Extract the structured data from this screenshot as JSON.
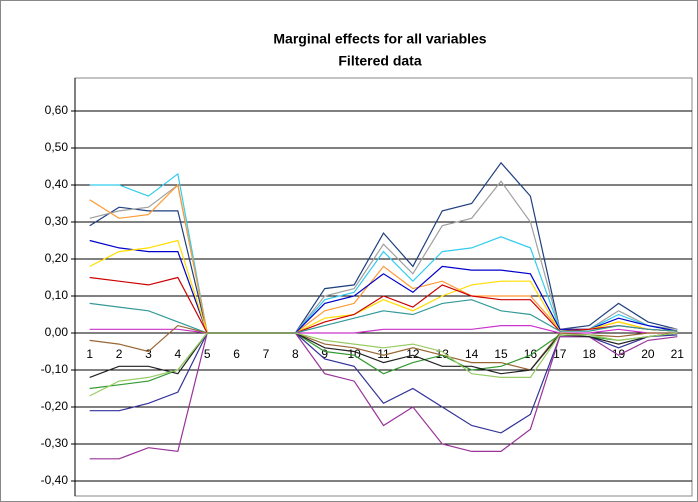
{
  "chart_data": {
    "type": "line",
    "title": "Marginal effects for all variables",
    "subtitle": "Filtered data",
    "categories": [
      "1",
      "2",
      "3",
      "4",
      "5",
      "6",
      "7",
      "8",
      "9",
      "10",
      "11",
      "12",
      "13",
      "14",
      "15",
      "16",
      "17",
      "18",
      "19",
      "20",
      "21"
    ],
    "ylim": [
      -0.4,
      0.6
    ],
    "yticks": [
      {
        "value": 0.6,
        "label": "0,60"
      },
      {
        "value": 0.5,
        "label": "0,50"
      },
      {
        "value": 0.4,
        "label": "0,40"
      },
      {
        "value": 0.3,
        "label": "0,30"
      },
      {
        "value": 0.2,
        "label": "0,20"
      },
      {
        "value": 0.1,
        "label": "0,10"
      },
      {
        "value": 0,
        "label": "0,00"
      },
      {
        "value": -0.1,
        "label": "-0,10"
      },
      {
        "value": -0.2,
        "label": "-0,20"
      },
      {
        "value": -0.3,
        "label": "-0,30"
      },
      {
        "value": -0.4,
        "label": "-0,40"
      }
    ],
    "grid": true,
    "series": [
      {
        "color": "#1f3f7f",
        "values": [
          0.29,
          0.34,
          0.33,
          0.33,
          0,
          0,
          0,
          0,
          0.12,
          0.13,
          0.27,
          0.18,
          0.33,
          0.35,
          0.46,
          0.37,
          0.01,
          0.02,
          0.08,
          0.03,
          0.01
        ]
      },
      {
        "color": "#a0a0a0",
        "values": [
          0.31,
          0.33,
          0.34,
          0.4,
          0,
          0,
          0,
          0,
          0.1,
          0.12,
          0.24,
          0.16,
          0.29,
          0.31,
          0.41,
          0.3,
          0.01,
          0.01,
          0.06,
          0.02,
          0.01
        ]
      },
      {
        "color": "#33ccee",
        "values": [
          0.4,
          0.4,
          0.37,
          0.43,
          0,
          0,
          0,
          0,
          0.09,
          0.11,
          0.22,
          0.14,
          0.22,
          0.23,
          0.26,
          0.23,
          0.01,
          0.01,
          0.05,
          0.02,
          0.005
        ]
      },
      {
        "color": "#ff9933",
        "values": [
          0.36,
          0.31,
          0.32,
          0.4,
          0,
          0,
          0,
          0,
          0.06,
          0.08,
          0.18,
          0.12,
          0.14,
          0.1,
          0.1,
          0.1,
          0.01,
          0.01,
          0.03,
          0.01,
          0.005
        ]
      },
      {
        "color": "#0000cc",
        "values": [
          0.25,
          0.23,
          0.22,
          0.22,
          0,
          0,
          0,
          0,
          0.08,
          0.1,
          0.16,
          0.11,
          0.18,
          0.17,
          0.17,
          0.16,
          0.01,
          0.01,
          0.04,
          0.02,
          0.005
        ]
      },
      {
        "color": "#ffdd00",
        "values": [
          0.18,
          0.22,
          0.23,
          0.25,
          0,
          0,
          0,
          0,
          0.04,
          0.05,
          0.09,
          0.06,
          0.1,
          0.13,
          0.14,
          0.14,
          0.005,
          0.01,
          0.03,
          0.01,
          0.005
        ]
      },
      {
        "color": "#cc0000",
        "values": [
          0.15,
          0.14,
          0.13,
          0.15,
          0,
          0,
          0,
          0,
          0.03,
          0.05,
          0.1,
          0.07,
          0.13,
          0.1,
          0.09,
          0.09,
          0.005,
          0.01,
          0.02,
          0.01,
          0.005
        ]
      },
      {
        "color": "#339999",
        "values": [
          0.08,
          0.07,
          0.06,
          0.03,
          0,
          0,
          0,
          0,
          0.02,
          0.04,
          0.06,
          0.05,
          0.08,
          0.09,
          0.06,
          0.05,
          0.005,
          0.005,
          0.02,
          0.01,
          0.005
        ]
      },
      {
        "color": "#cc33cc",
        "values": [
          0.01,
          0.01,
          0.01,
          0.01,
          0,
          0,
          0,
          0,
          0.0,
          0.0,
          0.01,
          0.01,
          0.01,
          0.01,
          0.02,
          0.02,
          0.0,
          0.0,
          0.01,
          0.0,
          0.0
        ]
      },
      {
        "color": "#996633",
        "values": [
          -0.02,
          -0.03,
          -0.05,
          0.02,
          0,
          0,
          0,
          0,
          -0.03,
          -0.04,
          -0.06,
          -0.04,
          -0.06,
          -0.08,
          -0.08,
          -0.1,
          0.0,
          -0.005,
          -0.01,
          0.0,
          0.0
        ]
      },
      {
        "color": "#339933",
        "values": [
          -0.15,
          -0.14,
          -0.13,
          -0.1,
          0,
          0,
          0,
          0,
          -0.05,
          -0.06,
          -0.11,
          -0.08,
          -0.06,
          -0.1,
          -0.09,
          -0.06,
          -0.005,
          -0.01,
          -0.02,
          -0.01,
          0.0
        ]
      },
      {
        "color": "#333399",
        "values": [
          -0.21,
          -0.21,
          -0.19,
          -0.16,
          0,
          0,
          0,
          0,
          -0.07,
          -0.09,
          -0.19,
          -0.15,
          -0.2,
          -0.25,
          -0.27,
          -0.22,
          -0.01,
          -0.01,
          -0.04,
          -0.01,
          -0.005
        ]
      },
      {
        "color": "#993399",
        "values": [
          -0.34,
          -0.34,
          -0.31,
          -0.32,
          0,
          0,
          0,
          0,
          -0.11,
          -0.13,
          -0.25,
          -0.2,
          -0.3,
          -0.32,
          -0.32,
          -0.26,
          -0.01,
          -0.01,
          -0.06,
          -0.02,
          -0.01
        ]
      },
      {
        "color": "#222222",
        "values": [
          -0.12,
          -0.09,
          -0.09,
          -0.11,
          0,
          0,
          0,
          0,
          -0.04,
          -0.05,
          -0.08,
          -0.06,
          -0.09,
          -0.09,
          -0.11,
          -0.1,
          -0.005,
          -0.01,
          -0.03,
          -0.01,
          0.0
        ]
      },
      {
        "color": "#99cc66",
        "values": [
          -0.17,
          -0.13,
          -0.12,
          -0.1,
          0,
          0,
          0,
          0,
          -0.02,
          -0.03,
          -0.04,
          -0.03,
          -0.05,
          -0.11,
          -0.12,
          -0.12,
          -0.005,
          -0.005,
          -0.02,
          -0.01,
          0.0
        ]
      }
    ]
  }
}
